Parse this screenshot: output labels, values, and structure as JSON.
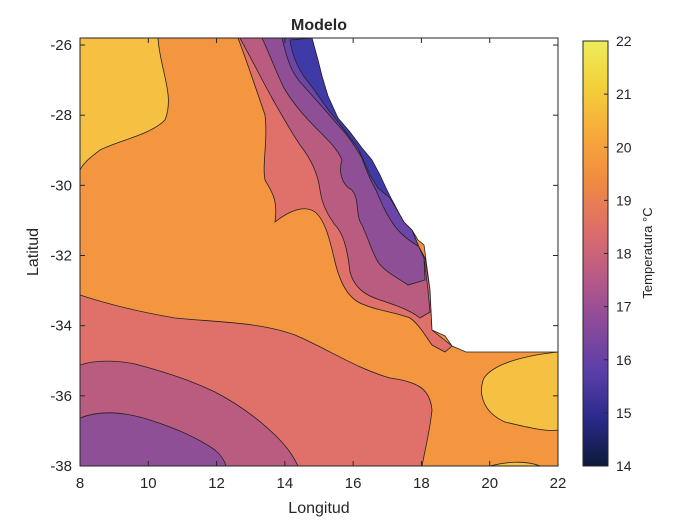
{
  "chart_data": {
    "type": "contour",
    "title": "Modelo",
    "xlabel": "Longitud",
    "ylabel": "Latitud",
    "xlim": [
      8,
      22
    ],
    "ylim": [
      -38,
      -25.8
    ],
    "xticks": [
      8,
      10,
      12,
      14,
      16,
      18,
      20,
      22
    ],
    "yticks": [
      -26,
      -28,
      -30,
      -32,
      -34,
      -36,
      -38
    ],
    "colorbar": {
      "label": "Temperatura °C",
      "range": [
        14,
        22
      ],
      "ticks": [
        14,
        15,
        16,
        17,
        18,
        19,
        20,
        21,
        22
      ],
      "colormap": "plasma",
      "stops": [
        "#0d1a3a",
        "#2a2a8a",
        "#5a3fa8",
        "#8a4a9a",
        "#b85a86",
        "#dd6e6a",
        "#f08a42",
        "#f7a93a",
        "#f3cf3a",
        "#eded5a"
      ]
    },
    "levels": [
      {
        "value": 21,
        "color": "#f6c042",
        "label": "20-21"
      },
      {
        "value": 20,
        "color": "#f4963f",
        "label": "19-20"
      },
      {
        "value": 19,
        "color": "#e0706a",
        "label": "18-19"
      },
      {
        "value": 18,
        "color": "#b95c80",
        "label": "17-18"
      },
      {
        "value": 17,
        "color": "#8e4f96",
        "label": "16-17"
      },
      {
        "value": 16,
        "color": "#6b45a8",
        "label": "15-16"
      },
      {
        "value": 15,
        "color": "#3f3aa6",
        "label": "14-15"
      }
    ],
    "land_mask": "continent (white, no data) to the upper right"
  }
}
